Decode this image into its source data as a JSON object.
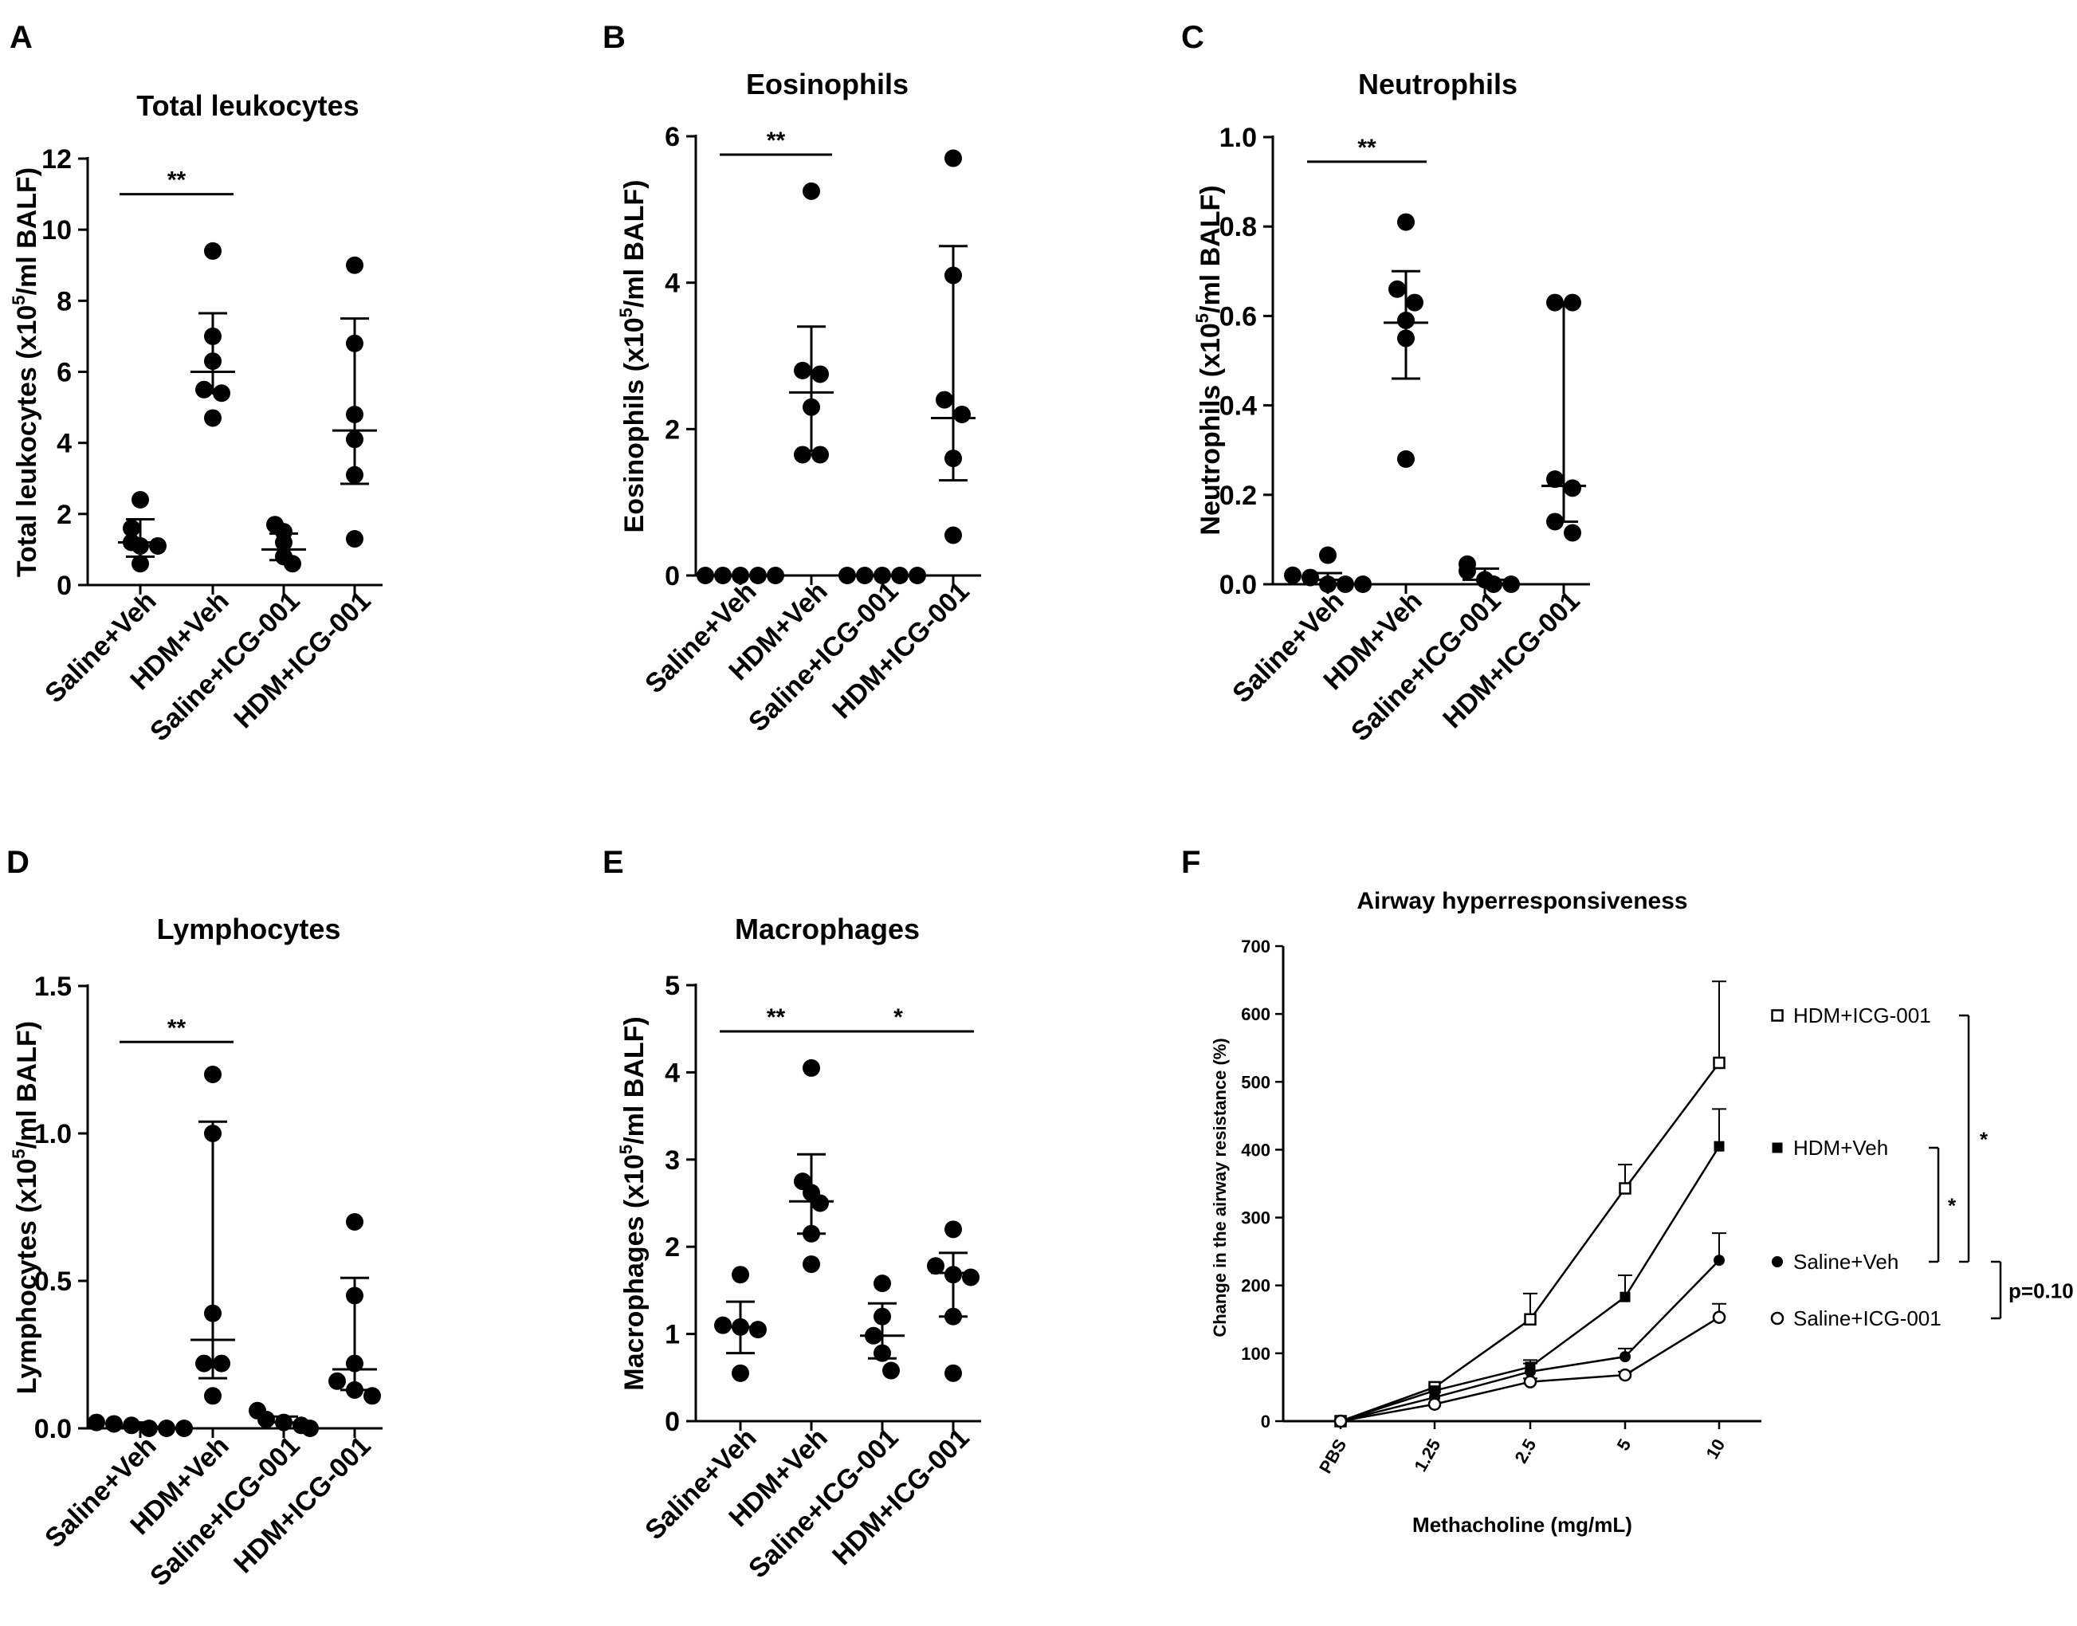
{
  "figure": {
    "group_labels": [
      "Saline+Veh",
      "HDM+Veh",
      "Saline+ICG-001",
      "HDM+ICG-001"
    ]
  },
  "chart_data": [
    {
      "panel": "A",
      "type": "scatter",
      "title": "Total leukocytes",
      "ylabel_pre": "Total leukocytes (x10",
      "ylabel_sup": "5",
      "ylabel_post": "/ml BALF)",
      "ylim": [
        0,
        12
      ],
      "yticks": [
        0,
        2,
        4,
        6,
        8,
        10,
        12
      ],
      "ytick_labels": [
        "0",
        "2",
        "4",
        "6",
        "8",
        "10",
        "12"
      ],
      "groups": [
        {
          "name": "Saline+Veh",
          "points": [
            2.4,
            1.6,
            1.2,
            1.1,
            1.1,
            0.6
          ],
          "center": 1.2,
          "err_low": 0.8,
          "err_high": 1.85
        },
        {
          "name": "HDM+Veh",
          "points": [
            9.4,
            7.0,
            6.3,
            5.5,
            5.4,
            4.7
          ],
          "center": 6.0,
          "err_low": 5.4,
          "err_high": 7.65
        },
        {
          "name": "Saline+ICG-001",
          "points": [
            1.7,
            1.5,
            1.2,
            0.8,
            0.6
          ],
          "center": 1.0,
          "err_low": 0.7,
          "err_high": 1.45
        },
        {
          "name": "HDM+ICG-001",
          "points": [
            9.0,
            6.8,
            4.8,
            4.1,
            3.1,
            1.3
          ],
          "center": 4.35,
          "err_low": 2.85,
          "err_high": 7.5
        }
      ],
      "significance": [
        {
          "from": 0,
          "to": 1,
          "label": "**",
          "y": 11.0
        }
      ]
    },
    {
      "panel": "B",
      "type": "scatter",
      "title": "Eosinophils",
      "ylabel_pre": "Eosinophils (x10",
      "ylabel_sup": "5",
      "ylabel_post": "/ml BALF)",
      "ylim": [
        0,
        6
      ],
      "yticks": [
        0,
        2,
        4,
        6
      ],
      "ytick_labels": [
        "0",
        "2",
        "4",
        "6"
      ],
      "groups": [
        {
          "name": "Saline+Veh",
          "points": [
            0,
            0,
            0,
            0,
            0
          ],
          "center": 0,
          "err_low": 0,
          "err_high": 0
        },
        {
          "name": "HDM+Veh",
          "points": [
            5.25,
            2.8,
            2.75,
            2.3,
            1.65,
            1.65
          ],
          "center": 2.5,
          "err_low": 1.7,
          "err_high": 3.4
        },
        {
          "name": "Saline+ICG-001",
          "points": [
            0,
            0,
            0,
            0,
            0
          ],
          "center": 0,
          "err_low": 0,
          "err_high": 0
        },
        {
          "name": "HDM+ICG-001",
          "points": [
            5.7,
            4.1,
            2.4,
            2.2,
            1.6,
            0.55
          ],
          "center": 2.15,
          "err_low": 1.3,
          "err_high": 4.5
        }
      ],
      "significance": [
        {
          "from": 0,
          "to": 1,
          "label": "**",
          "y": 5.75
        }
      ]
    },
    {
      "panel": "C",
      "type": "scatter",
      "title": "Neutrophils",
      "ylabel_pre": "Neutrophils (x10",
      "ylabel_sup": "5",
      "ylabel_post": "/ml BALF)",
      "ylim": [
        0,
        1.0
      ],
      "yticks": [
        0,
        0.2,
        0.4,
        0.6,
        0.8,
        1.0
      ],
      "ytick_labels": [
        "0.0",
        "0.2",
        "0.4",
        "0.6",
        "0.8",
        "1.0"
      ],
      "groups": [
        {
          "name": "Saline+Veh",
          "points": [
            0.065,
            0.02,
            0.015,
            0.0,
            0.0,
            0.0
          ],
          "center": 0.01,
          "err_low": 0.0,
          "err_high": 0.025
        },
        {
          "name": "HDM+Veh",
          "points": [
            0.81,
            0.66,
            0.63,
            0.59,
            0.55,
            0.28
          ],
          "center": 0.585,
          "err_low": 0.46,
          "err_high": 0.7
        },
        {
          "name": "Saline+ICG-001",
          "points": [
            0.045,
            0.03,
            0.01,
            0.0,
            0.0
          ],
          "center": 0.01,
          "err_low": 0.0,
          "err_high": 0.035
        },
        {
          "name": "HDM+ICG-001",
          "points": [
            0.63,
            0.63,
            0.235,
            0.215,
            0.14,
            0.115
          ],
          "center": 0.22,
          "err_low": 0.14,
          "err_high": 0.63
        }
      ],
      "significance": [
        {
          "from": 0,
          "to": 1,
          "label": "**",
          "y": 0.945
        }
      ]
    },
    {
      "panel": "D",
      "type": "scatter",
      "title": "Lymphocytes",
      "ylabel_pre": "Lymphocytes (x10",
      "ylabel_sup": "5",
      "ylabel_post": "/ml BALF)",
      "ylim": [
        0,
        1.5
      ],
      "yticks": [
        0,
        0.5,
        1.0,
        1.5
      ],
      "ytick_labels": [
        "0.0",
        "0.5",
        "1.0",
        "1.5"
      ],
      "groups": [
        {
          "name": "Saline+Veh",
          "points": [
            0.02,
            0.015,
            0.01,
            0.0,
            0.0,
            0.0
          ],
          "center": 0.005,
          "err_low": 0.0,
          "err_high": 0.02
        },
        {
          "name": "HDM+Veh",
          "points": [
            1.2,
            1.0,
            0.39,
            0.22,
            0.22,
            0.11
          ],
          "center": 0.3,
          "err_low": 0.17,
          "err_high": 1.04
        },
        {
          "name": "Saline+ICG-001",
          "points": [
            0.06,
            0.03,
            0.02,
            0.01,
            0.0
          ],
          "center": 0.02,
          "err_low": 0.0,
          "err_high": 0.04
        },
        {
          "name": "HDM+ICG-001",
          "points": [
            0.7,
            0.45,
            0.22,
            0.16,
            0.13,
            0.11
          ],
          "center": 0.2,
          "err_low": 0.13,
          "err_high": 0.51
        }
      ],
      "significance": [
        {
          "from": 0,
          "to": 1,
          "label": "**",
          "y": 1.31
        }
      ]
    },
    {
      "panel": "E",
      "type": "scatter",
      "title": "Macrophages",
      "ylabel_pre": "Macrophages (x10",
      "ylabel_sup": "5",
      "ylabel_post": "/ml BALF)",
      "ylim": [
        0,
        5
      ],
      "yticks": [
        0,
        1,
        2,
        3,
        4,
        5
      ],
      "ytick_labels": [
        "0",
        "1",
        "2",
        "3",
        "4",
        "5"
      ],
      "groups": [
        {
          "name": "Saline+Veh",
          "points": [
            1.68,
            1.1,
            1.08,
            1.05,
            0.55
          ],
          "center": 1.08,
          "err_low": 0.78,
          "err_high": 1.37
        },
        {
          "name": "HDM+Veh",
          "points": [
            4.05,
            2.75,
            2.62,
            2.5,
            2.15,
            1.8
          ],
          "center": 2.52,
          "err_low": 2.15,
          "err_high": 3.06
        },
        {
          "name": "Saline+ICG-001",
          "points": [
            1.58,
            1.2,
            0.98,
            0.78,
            0.58
          ],
          "center": 0.98,
          "err_low": 0.72,
          "err_high": 1.35
        },
        {
          "name": "HDM+ICG-001",
          "points": [
            2.2,
            1.78,
            1.68,
            1.65,
            1.2,
            0.55
          ],
          "center": 1.7,
          "err_low": 1.2,
          "err_high": 1.93
        },
        {
          "_note": ""
        }
      ],
      "significance": [
        {
          "from": 0,
          "to": 1,
          "label": "**",
          "y": 4.47
        },
        {
          "from": 1,
          "to": 3,
          "label": "*",
          "y": 4.47
        }
      ]
    },
    {
      "panel": "F",
      "type": "line",
      "title": "Airway hyperresponsiveness",
      "xlabel": "Methacholine (mg/mL)",
      "ylabel": "Change in the airway resistance (%)",
      "ylim": [
        0,
        700
      ],
      "yticks": [
        0,
        100,
        200,
        300,
        400,
        500,
        600,
        700
      ],
      "ytick_labels": [
        "0",
        "100",
        "200",
        "300",
        "400",
        "500",
        "600",
        "700"
      ],
      "categories": [
        "PBS",
        "1.25",
        "2.5",
        "5",
        "10"
      ],
      "series": [
        {
          "name": "HDM+ICG-001",
          "marker": "open-square",
          "values": [
            0,
            50,
            150,
            343,
            528
          ],
          "err": [
            0,
            0,
            38,
            35,
            120
          ]
        },
        {
          "name": "HDM+Veh",
          "marker": "filled-square",
          "values": [
            0,
            45,
            80,
            183,
            405
          ],
          "err": [
            0,
            0,
            10,
            32,
            55
          ]
        },
        {
          "name": "Saline+Veh",
          "marker": "filled-circle",
          "values": [
            0,
            35,
            73,
            95,
            237
          ],
          "err": [
            0,
            0,
            12,
            12,
            40
          ]
        },
        {
          "name": "Saline+ICG-001",
          "marker": "open-circle",
          "values": [
            0,
            25,
            58,
            68,
            153
          ],
          "err": [
            0,
            0,
            5,
            5,
            20
          ]
        }
      ],
      "brackets": [
        {
          "from": "HDM+Veh",
          "to": "Saline+Veh",
          "label": "*"
        },
        {
          "from": "HDM+ICG-001",
          "to": "Saline+Veh",
          "label": "*"
        },
        {
          "from": "Saline+Veh",
          "to": "Saline+ICG-001",
          "label": "p=0.10"
        }
      ]
    }
  ]
}
